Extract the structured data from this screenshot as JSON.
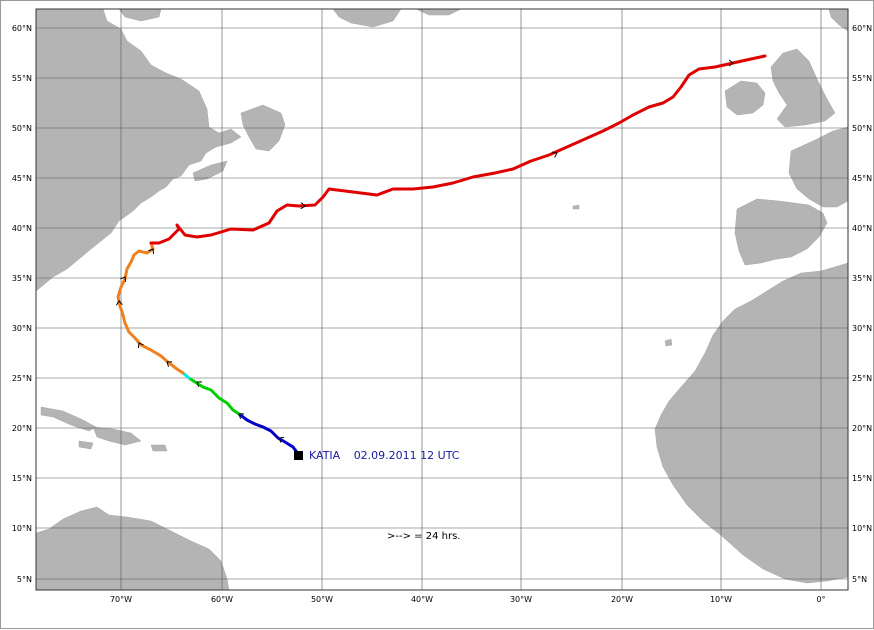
{
  "map": {
    "lon_ticks": [
      "70°W",
      "60°W",
      "50°W",
      "40°W",
      "30°W",
      "20°W",
      "10°W",
      "0°"
    ],
    "lat_ticks": [
      "60°N",
      "55°N",
      "50°N",
      "45°N",
      "40°N",
      "35°N",
      "30°N",
      "25°N",
      "20°N",
      "15°N",
      "10°N",
      "5°N"
    ],
    "colors": {
      "land": "#b4b4b4",
      "grid": "#555555",
      "intensity": [
        "#0000c8",
        "#00d000",
        "#00e8e8",
        "#f08020",
        "#e00000"
      ]
    }
  },
  "storm": {
    "name": "KATIA",
    "date": "02.09.2011 12 UTC",
    "legend": ">--> = 24 hrs."
  }
}
